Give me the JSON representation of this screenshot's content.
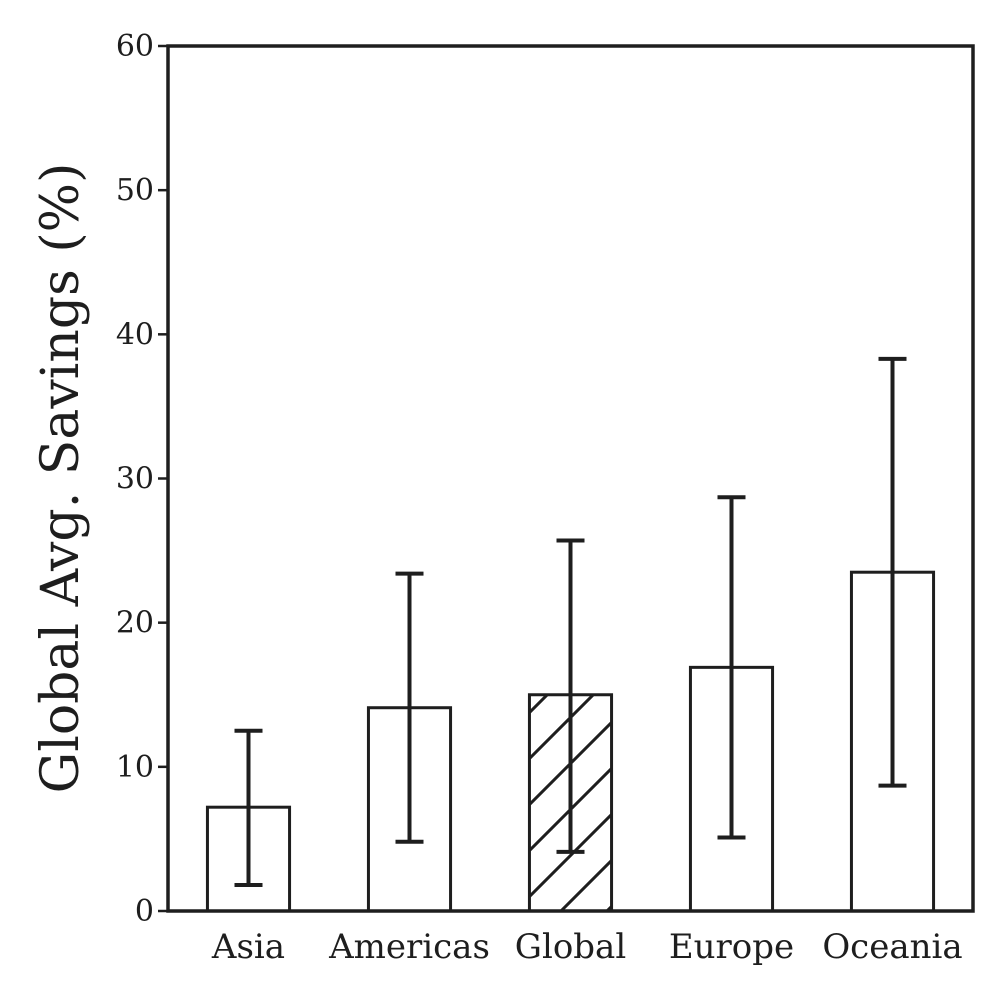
{
  "chart_data": {
    "type": "bar",
    "title": "",
    "xlabel": "",
    "ylabel": "Global Avg. Savings (%)",
    "categories": [
      "Asia",
      "Americas",
      "Global",
      "Europe",
      "Oceania"
    ],
    "values": [
      7.2,
      14.1,
      15.0,
      16.9,
      23.5
    ],
    "error_low": [
      1.8,
      4.8,
      4.1,
      5.1,
      8.7
    ],
    "error_high": [
      12.5,
      23.4,
      25.7,
      28.7,
      38.3
    ],
    "hatched": [
      false,
      false,
      true,
      false,
      false
    ],
    "ylim": [
      0,
      60
    ],
    "yticks": [
      0,
      10,
      20,
      30,
      40,
      50,
      60
    ],
    "grid": false,
    "legend": "none",
    "colors": {
      "bar_fill": "#ffffff",
      "ink": "#1e1e1e"
    }
  }
}
